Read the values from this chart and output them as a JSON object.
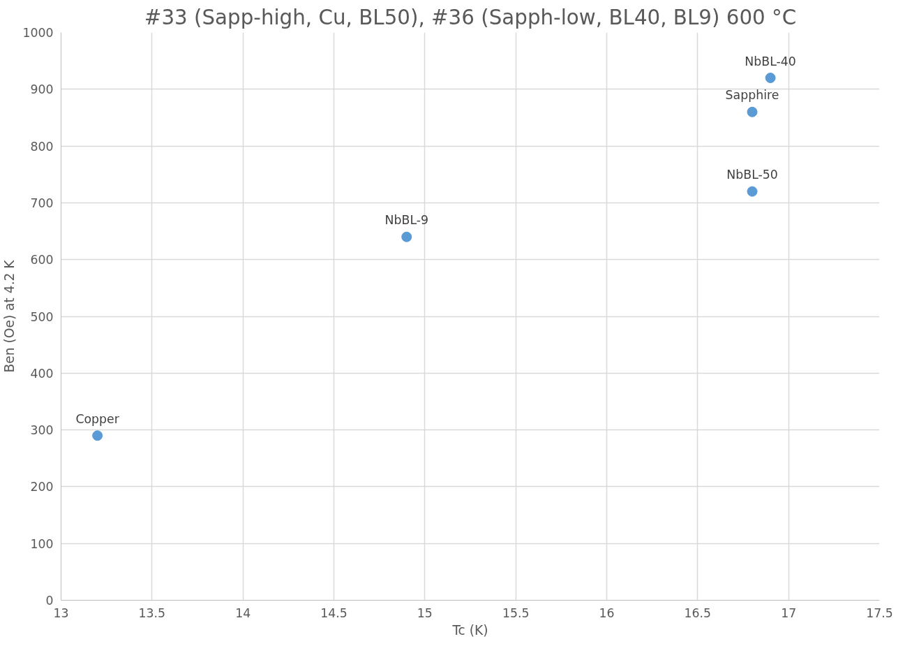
{
  "chart_data": {
    "type": "scatter",
    "title": "#33 (Sapp-high, Cu, BL50), #36 (Sapph-low, BL40, BL9) 600 °C",
    "xlabel": "Tc (K)",
    "ylabel": "Ben (Oe) at 4.2 K",
    "x": [
      13.2,
      14.9,
      16.8,
      16.8,
      16.9
    ],
    "series": [
      {
        "color": "#5b9bd5",
        "values": [
          290,
          640,
          860,
          720,
          920
        ]
      }
    ],
    "annotations": [
      {
        "text": "Copper",
        "x": 13.2,
        "y": 290
      },
      {
        "text": "NbBL-9",
        "x": 14.9,
        "y": 640
      },
      {
        "text": "Sapphire",
        "x": 16.8,
        "y": 860
      },
      {
        "text": "NbBL-50",
        "x": 16.8,
        "y": 720
      },
      {
        "text": "NbBL-40",
        "x": 16.9,
        "y": 920
      }
    ],
    "xlim": [
      13,
      17.5
    ],
    "ylim": [
      0,
      1000
    ],
    "xticks": [
      13,
      13.5,
      14,
      14.5,
      15,
      15.5,
      16,
      16.5,
      17,
      17.5
    ],
    "yticks": [
      0,
      100,
      200,
      300,
      400,
      500,
      600,
      700,
      800,
      900,
      1000
    ],
    "grid": true,
    "marker": "circle"
  }
}
